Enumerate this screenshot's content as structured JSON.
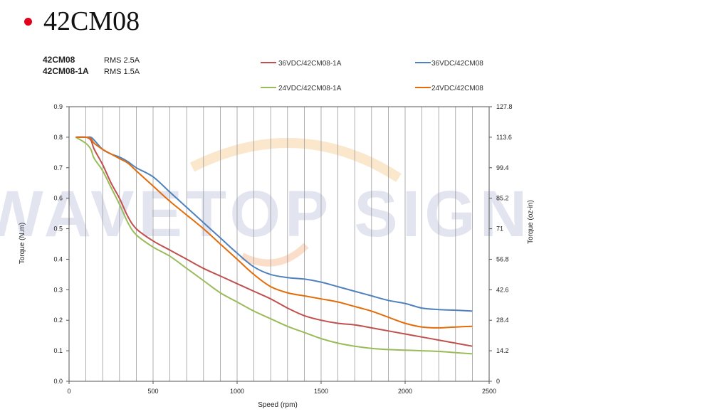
{
  "header": {
    "title": "42CM08",
    "bullet_color": "#e3001b"
  },
  "notes": [
    {
      "model": "42CM08",
      "current": "RMS 2.5A"
    },
    {
      "model": "42CM08-1A",
      "current": "RMS 1.5A"
    }
  ],
  "watermark": "WAVETOP SIGN",
  "chart_data": {
    "type": "line",
    "title": "",
    "xlabel": "Speed (rpm)",
    "ylabel": "Torque (N.m)",
    "y2label": "Torque (oz-in)",
    "xlim": [
      0,
      2500
    ],
    "ylim": [
      0,
      0.9
    ],
    "xticks": [
      0,
      500,
      1000,
      1500,
      2000,
      2500
    ],
    "yticks": [
      0,
      0.1,
      0.2,
      0.3,
      0.4,
      0.5,
      0.6,
      0.7,
      0.8,
      0.9
    ],
    "ytick_labels": [
      "0.0",
      "0.1",
      "0.2",
      "0.3",
      "0.4",
      "0.5",
      "0.6",
      "0.7",
      "0.8",
      "0.9"
    ],
    "y2ticks": [
      "0",
      "14.2",
      "28.4",
      "42.6",
      "56.8",
      "71",
      "85.2",
      "99.4",
      "113.6",
      "127.8"
    ],
    "grid": "vertical",
    "legend_position": "top",
    "series": [
      {
        "name": "36VDC/42CM08-1A",
        "color": "#c0504d",
        "x": [
          40,
          100,
          130,
          150,
          200,
          250,
          300,
          350,
          400,
          500,
          600,
          700,
          800,
          900,
          1000,
          1100,
          1200,
          1300,
          1400,
          1500,
          1600,
          1700,
          1800,
          1900,
          2000,
          2100,
          2200,
          2300,
          2400
        ],
        "y": [
          0.8,
          0.8,
          0.79,
          0.76,
          0.71,
          0.65,
          0.6,
          0.54,
          0.5,
          0.46,
          0.43,
          0.4,
          0.37,
          0.345,
          0.32,
          0.295,
          0.27,
          0.24,
          0.215,
          0.2,
          0.19,
          0.185,
          0.175,
          0.165,
          0.155,
          0.145,
          0.135,
          0.125,
          0.115
        ]
      },
      {
        "name": "36VDC/42CM08",
        "color": "#4f81bd",
        "x": [
          40,
          100,
          130,
          150,
          200,
          250,
          300,
          350,
          400,
          500,
          600,
          700,
          800,
          900,
          1000,
          1100,
          1200,
          1300,
          1400,
          1500,
          1600,
          1700,
          1800,
          1900,
          2000,
          2100,
          2200,
          2300,
          2400
        ],
        "y": [
          0.8,
          0.8,
          0.8,
          0.79,
          0.76,
          0.745,
          0.735,
          0.72,
          0.7,
          0.67,
          0.62,
          0.57,
          0.52,
          0.47,
          0.42,
          0.375,
          0.35,
          0.34,
          0.335,
          0.325,
          0.31,
          0.295,
          0.28,
          0.265,
          0.255,
          0.24,
          0.235,
          0.233,
          0.23
        ]
      },
      {
        "name": "24VDC/42CM08-1A",
        "color": "#9bbb59",
        "x": [
          40,
          100,
          130,
          150,
          200,
          250,
          300,
          350,
          400,
          500,
          600,
          700,
          800,
          900,
          1000,
          1100,
          1200,
          1300,
          1400,
          1500,
          1600,
          1700,
          1800,
          1900,
          2000,
          2100,
          2200,
          2300,
          2400
        ],
        "y": [
          0.8,
          0.78,
          0.76,
          0.73,
          0.69,
          0.635,
          0.58,
          0.52,
          0.48,
          0.44,
          0.41,
          0.37,
          0.33,
          0.29,
          0.26,
          0.23,
          0.205,
          0.18,
          0.16,
          0.14,
          0.125,
          0.115,
          0.108,
          0.104,
          0.102,
          0.1,
          0.098,
          0.094,
          0.09
        ]
      },
      {
        "name": "24VDC/42CM08",
        "color": "#e36c09",
        "x": [
          40,
          100,
          130,
          150,
          200,
          250,
          300,
          350,
          400,
          500,
          600,
          700,
          800,
          900,
          1000,
          1100,
          1200,
          1300,
          1400,
          1500,
          1600,
          1700,
          1800,
          1900,
          2000,
          2100,
          2200,
          2300,
          2400
        ],
        "y": [
          0.8,
          0.8,
          0.795,
          0.78,
          0.76,
          0.745,
          0.73,
          0.715,
          0.69,
          0.64,
          0.59,
          0.545,
          0.5,
          0.45,
          0.4,
          0.35,
          0.31,
          0.29,
          0.28,
          0.27,
          0.26,
          0.245,
          0.23,
          0.21,
          0.19,
          0.178,
          0.175,
          0.178,
          0.18
        ]
      }
    ]
  }
}
